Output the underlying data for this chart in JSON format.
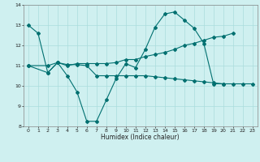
{
  "xlabel": "Humidex (Indice chaleur)",
  "background_color": "#cff0f0",
  "grid_color": "#aadddd",
  "line_color": "#007070",
  "xlim": [
    -0.5,
    23.5
  ],
  "ylim": [
    8,
    14
  ],
  "yticks": [
    8,
    9,
    10,
    11,
    12,
    13,
    14
  ],
  "xticks": [
    0,
    1,
    2,
    3,
    4,
    5,
    6,
    7,
    8,
    9,
    10,
    11,
    12,
    13,
    14,
    15,
    16,
    17,
    18,
    19,
    20,
    21,
    22,
    23
  ],
  "line1_x": [
    0,
    1,
    2,
    3,
    4,
    5,
    6,
    7,
    8,
    9,
    10,
    11,
    12,
    13,
    14,
    15,
    16,
    17,
    18,
    19,
    20
  ],
  "line1_y": [
    13.0,
    12.6,
    10.65,
    11.15,
    10.5,
    9.7,
    8.25,
    8.25,
    9.3,
    10.35,
    11.1,
    10.9,
    11.8,
    12.9,
    13.55,
    13.65,
    13.25,
    12.85,
    12.1,
    10.1,
    10.1
  ],
  "line2_x": [
    0,
    2,
    3,
    4,
    5,
    6,
    7,
    8,
    9,
    10,
    11,
    12,
    13,
    14,
    15,
    16,
    17,
    18,
    19,
    20,
    21
  ],
  "line2_y": [
    11.0,
    11.0,
    11.15,
    11.0,
    11.1,
    11.1,
    11.1,
    11.1,
    11.15,
    11.3,
    11.3,
    11.45,
    11.55,
    11.65,
    11.8,
    12.0,
    12.1,
    12.25,
    12.4,
    12.45,
    12.6
  ],
  "line3_x": [
    0,
    2,
    3,
    4,
    5,
    6,
    7,
    8,
    9,
    10,
    11,
    12,
    13,
    14,
    15,
    16,
    17,
    18,
    19,
    20,
    21,
    22,
    23
  ],
  "line3_y": [
    11.0,
    10.65,
    11.15,
    11.05,
    11.05,
    11.0,
    10.5,
    10.5,
    10.5,
    10.5,
    10.5,
    10.5,
    10.45,
    10.4,
    10.35,
    10.3,
    10.25,
    10.2,
    10.15,
    10.1,
    10.1,
    10.1,
    10.1
  ]
}
